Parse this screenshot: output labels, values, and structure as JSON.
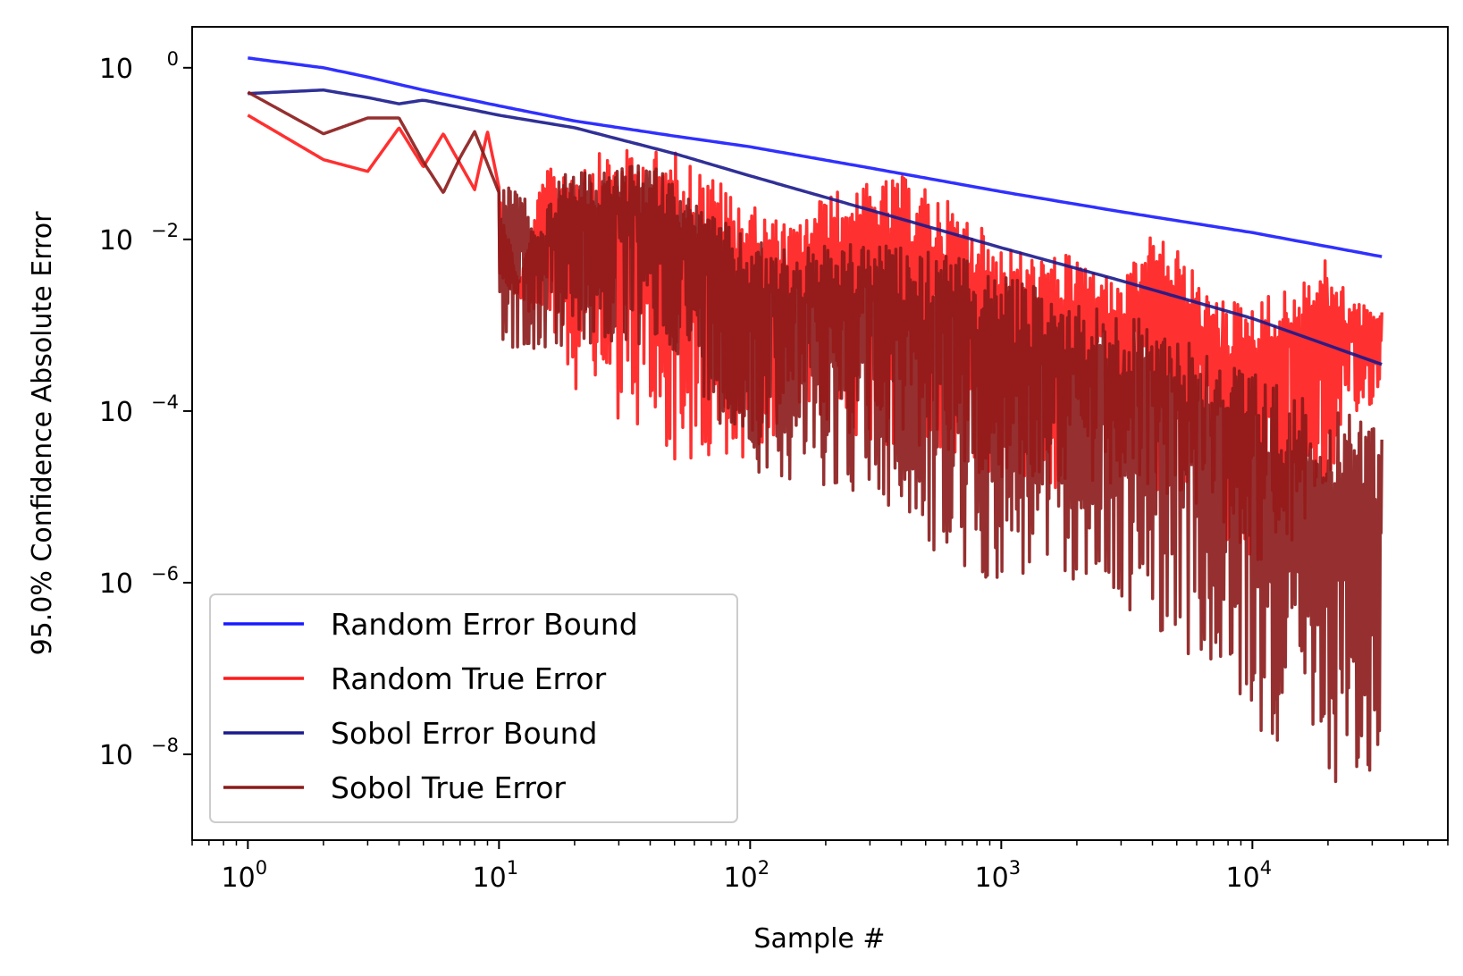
{
  "chart_data": {
    "type": "line",
    "xlabel": "Sample #",
    "ylabel": "95.0% Confidence Absolute Error",
    "xscale": "log",
    "yscale": "log",
    "xlim": [
      0.6,
      60000
    ],
    "ylim": [
      1e-09,
      3
    ],
    "x_ticks": [
      {
        "base": "10",
        "exp": "0",
        "value": 1
      },
      {
        "base": "10",
        "exp": "1",
        "value": 10
      },
      {
        "base": "10",
        "exp": "2",
        "value": 100
      },
      {
        "base": "10",
        "exp": "3",
        "value": 1000
      },
      {
        "base": "10",
        "exp": "4",
        "value": 10000
      }
    ],
    "y_ticks": [
      {
        "base": "10",
        "exp": "0",
        "value": 1
      },
      {
        "base": "10",
        "exp": "−2",
        "value": 0.01
      },
      {
        "base": "10",
        "exp": "−4",
        "value": 0.0001
      },
      {
        "base": "10",
        "exp": "−6",
        "value": 1e-06
      },
      {
        "base": "10",
        "exp": "−8",
        "value": 1e-08
      }
    ],
    "grid": false,
    "legend_position": "lower-left",
    "series": [
      {
        "name": "Random Error Bound",
        "color": "#1a1aff",
        "kind": "bound",
        "points": [
          [
            1,
            1.3
          ],
          [
            2,
            1.0
          ],
          [
            3,
            0.78
          ],
          [
            5,
            0.55
          ],
          [
            10,
            0.36
          ],
          [
            20,
            0.24
          ],
          [
            50,
            0.16
          ],
          [
            100,
            0.12
          ],
          [
            300,
            0.068
          ],
          [
            1000,
            0.036
          ],
          [
            3000,
            0.021
          ],
          [
            10000,
            0.012
          ],
          [
            32768,
            0.0063
          ]
        ]
      },
      {
        "name": "Random True Error",
        "color": "#ff1a1a",
        "kind": "noisy",
        "envelope": [
          [
            1,
            0.28
          ],
          [
            2,
            0.085
          ],
          [
            3,
            0.062
          ],
          [
            4,
            0.2
          ],
          [
            5,
            0.07
          ],
          [
            6,
            0.17
          ],
          [
            8,
            0.038
          ],
          [
            9,
            0.18
          ],
          [
            12,
            0.003
          ],
          [
            15,
            0.06
          ],
          [
            20,
            0.09
          ],
          [
            30,
            0.11
          ],
          [
            50,
            0.11
          ],
          [
            70,
            0.06
          ],
          [
            100,
            0.025
          ],
          [
            150,
            0.014
          ],
          [
            200,
            0.035
          ],
          [
            300,
            0.045
          ],
          [
            400,
            0.055
          ],
          [
            600,
            0.03
          ],
          [
            1000,
            0.009
          ],
          [
            1500,
            0.006
          ],
          [
            2000,
            0.007
          ],
          [
            3000,
            0.003
          ],
          [
            4000,
            0.012
          ],
          [
            5000,
            0.008
          ],
          [
            7000,
            0.002
          ],
          [
            10000,
            0.002
          ],
          [
            15000,
            0.003
          ],
          [
            20000,
            0.006
          ],
          [
            25000,
            0.002
          ],
          [
            32768,
            0.0015
          ]
        ],
        "min_dips": [
          [
            12,
            0.0022
          ],
          [
            21,
            0.00015
          ],
          [
            77,
            1e-05
          ],
          [
            95,
            2.8e-05
          ],
          [
            150,
            8e-05
          ],
          [
            400,
            3e-05
          ],
          [
            2000,
            1e-05
          ],
          [
            5000,
            1e-05
          ],
          [
            12500,
            1e-06
          ],
          [
            32768,
            0.0002
          ]
        ]
      },
      {
        "name": "Sobol Error Bound",
        "color": "#1a1a8c",
        "kind": "bound",
        "points": [
          [
            1,
            0.5
          ],
          [
            2,
            0.55
          ],
          [
            3,
            0.45
          ],
          [
            4,
            0.38
          ],
          [
            5,
            0.42
          ],
          [
            8,
            0.32
          ],
          [
            10,
            0.28
          ],
          [
            20,
            0.2
          ],
          [
            50,
            0.1
          ],
          [
            100,
            0.055
          ],
          [
            300,
            0.022
          ],
          [
            1000,
            0.008
          ],
          [
            3000,
            0.0033
          ],
          [
            10000,
            0.0012
          ],
          [
            32768,
            0.00035
          ]
        ]
      },
      {
        "name": "Sobol True Error",
        "color": "#8b1a1a",
        "kind": "noisy",
        "envelope": [
          [
            1,
            0.52
          ],
          [
            2,
            0.17
          ],
          [
            3,
            0.26
          ],
          [
            4,
            0.26
          ],
          [
            5,
            0.08
          ],
          [
            6,
            0.035
          ],
          [
            7,
            0.09
          ],
          [
            8,
            0.18
          ],
          [
            10,
            0.035
          ],
          [
            12,
            0.055
          ],
          [
            14,
            0.012
          ],
          [
            18,
            0.06
          ],
          [
            25,
            0.06
          ],
          [
            40,
            0.08
          ],
          [
            70,
            0.02
          ],
          [
            100,
            0.01
          ],
          [
            150,
            0.008
          ],
          [
            300,
            0.009
          ],
          [
            600,
            0.007
          ],
          [
            1000,
            0.004
          ],
          [
            2000,
            0.002
          ],
          [
            5000,
            0.0009
          ],
          [
            10000,
            0.0003
          ],
          [
            20000,
            0.0001
          ],
          [
            32768,
            8e-05
          ]
        ],
        "min_dips": [
          [
            16,
            0.0005
          ],
          [
            50,
            0.0005
          ],
          [
            100,
            2e-05
          ],
          [
            300,
            1e-05
          ],
          [
            700,
            1e-06
          ],
          [
            2000,
            1e-06
          ],
          [
            5000,
            2e-07
          ],
          [
            10000,
            2e-08
          ],
          [
            20000,
            5e-09
          ],
          [
            32768,
            2e-09
          ]
        ]
      }
    ]
  }
}
